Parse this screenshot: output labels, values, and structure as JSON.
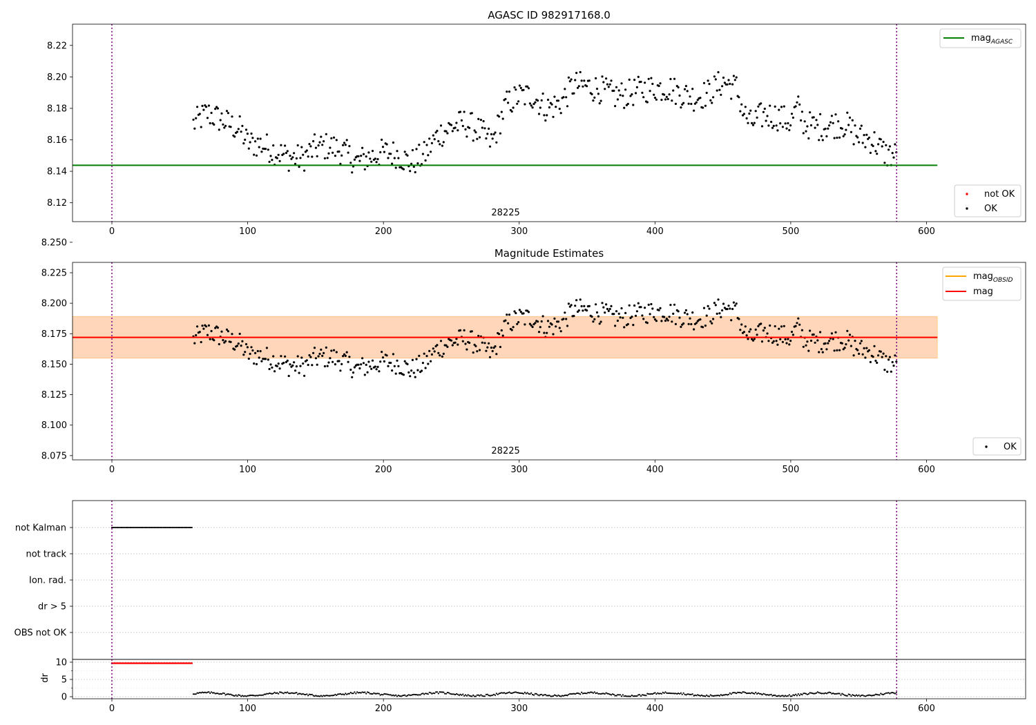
{
  "chart_data": [
    {
      "type": "scatter",
      "title": "AGASC ID 982917168.0",
      "xlabel": "",
      "ylabel": "",
      "xlim": [
        -29,
        673
      ],
      "ylim": [
        8.108,
        8.2335
      ],
      "xticks": [
        0,
        100,
        200,
        300,
        400,
        500,
        600
      ],
      "yticks": [
        8.12,
        8.14,
        8.16,
        8.18,
        8.2,
        8.22
      ],
      "ytick_decimals": 2,
      "grid": false,
      "obsid_label": "28225",
      "obsid_label_x": 290,
      "vlines": [
        0,
        578
      ],
      "mag_agasc": 8.1438,
      "mag_agasc_span": [
        -29,
        608
      ],
      "series": [
        {
          "name": "OK",
          "color": "#000000",
          "x_range": [
            60,
            578
          ],
          "profile": "mag"
        },
        {
          "name": "not OK",
          "color": "#ff0000",
          "points": []
        }
      ],
      "legend_top": {
        "placement": "top-right",
        "entries": [
          {
            "label": "mag",
            "sub": "AGASC",
            "color": "#008000"
          }
        ]
      },
      "legend_bottom": {
        "placement": "bottom-right",
        "entries": [
          {
            "label": "not OK",
            "color": "#ff0000"
          },
          {
            "label": "OK",
            "color": "#000000"
          }
        ]
      }
    },
    {
      "type": "scatter",
      "title": "Magnitude Estimates",
      "xlabel": "",
      "ylabel": "",
      "xlim": [
        -29,
        673
      ],
      "ylim": [
        8.0715,
        8.2335
      ],
      "xticks": [
        0,
        100,
        200,
        300,
        400,
        500,
        600
      ],
      "yticks": [
        8.075,
        8.1,
        8.125,
        8.15,
        8.175,
        8.2,
        8.225,
        8.25
      ],
      "ytick_decimals": 3,
      "grid": false,
      "obsid_label": "28225",
      "obsid_label_x": 290,
      "vlines": [
        0,
        578
      ],
      "mag": 8.172,
      "mag_obsid": 8.172,
      "band_outer": [
        8.1545,
        8.1895
      ],
      "band_inner": [
        8.155,
        8.189
      ],
      "band_span": [
        -29,
        608
      ],
      "series": [
        {
          "name": "OK",
          "color": "#000000",
          "x_range": [
            60,
            578
          ],
          "profile": "mag"
        }
      ],
      "legend_top": {
        "placement": "top-right",
        "entries": [
          {
            "label": "mag",
            "sub": "OBSID",
            "color": "#ffa500"
          },
          {
            "label": "mag",
            "sub": "",
            "color": "#ff0000"
          }
        ]
      },
      "legend_bottom": {
        "placement": "bottom-right",
        "entries": [
          {
            "label": "OK",
            "color": "#000000"
          }
        ]
      }
    },
    {
      "type": "scatter",
      "title": "",
      "xlim": [
        -29,
        673
      ],
      "categories": [
        "not Kalman",
        "not track",
        "Ion. rad.",
        "dr > 5",
        "OBS not OK"
      ],
      "flag_series": [
        {
          "category": "not Kalman",
          "x_range": [
            0,
            59
          ],
          "color": "#000000"
        }
      ],
      "vlines": [
        0,
        578
      ],
      "grid": true
    },
    {
      "type": "scatter",
      "title": "",
      "xlabel": "",
      "ylabel": "dr",
      "xlim": [
        -29,
        673
      ],
      "ylim": [
        -0.6,
        10.8
      ],
      "xticks": [
        0,
        100,
        200,
        300,
        400,
        500,
        600
      ],
      "yticks": [
        0,
        5,
        10
      ],
      "minor_yticks": [
        2.5,
        7.5
      ],
      "grid": true,
      "vlines": [
        0,
        578
      ],
      "series": [
        {
          "name": "dr clipped",
          "color": "#ff0000",
          "x_range": [
            0,
            59
          ],
          "value": 9.7
        },
        {
          "name": "dr",
          "color": "#000000",
          "x_range": [
            60,
            578
          ],
          "profile": "dr"
        }
      ]
    }
  ]
}
